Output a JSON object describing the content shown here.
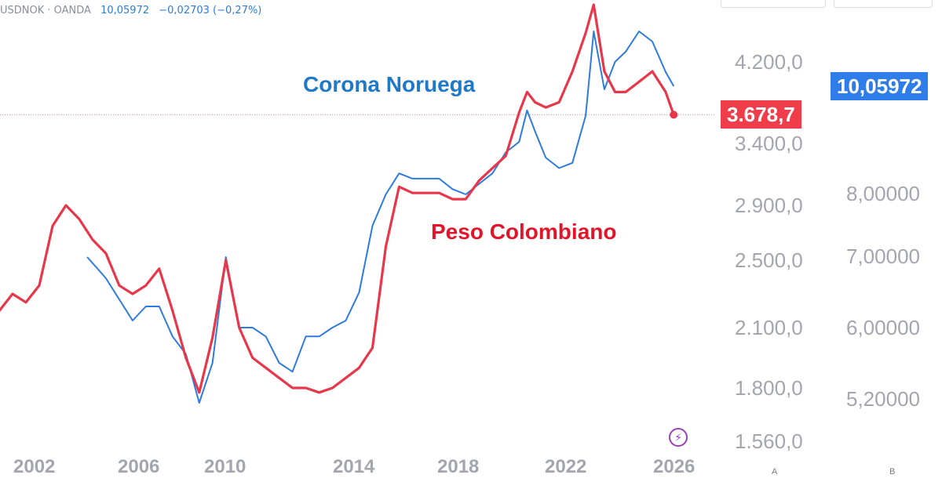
{
  "legend": {
    "symbol": "USDNOK · OANDA",
    "last": "10,05972",
    "change": "−0,02703 (−0,27%)"
  },
  "labels": {
    "blue_series": "Corona Noruega",
    "red_series": "Peso Colombiano"
  },
  "price_tags": {
    "blue": "10,05972",
    "red": "3.678,7"
  },
  "pane_letters": [
    "A",
    "B"
  ],
  "colors": {
    "blue": "#2d7be0",
    "red": "#e8374a",
    "tick_text": "#a3a6ae",
    "blue_tag": "#2f7de8",
    "red_tag": "#ef3d4a"
  },
  "icons": [
    "flash-icon"
  ],
  "chart_data": {
    "type": "line",
    "x_ticks": [
      "2002",
      "2006",
      "2010",
      "2014",
      "2018",
      "2022",
      "2026"
    ],
    "y_left_ticks": [
      "4.200,0",
      "3.400,0",
      "2.900,0",
      "2.500,0",
      "2.100,0",
      "1.800,0",
      "1.560,0"
    ],
    "y_right_ticks": [
      "8,00000",
      "7,00000",
      "6,00000",
      "5,20000"
    ],
    "series": [
      {
        "name": "Peso Colombiano",
        "axis": "left",
        "x": [
          2000.0,
          2000.5,
          2001.0,
          2001.5,
          2002.0,
          2002.5,
          2003.0,
          2003.5,
          2004.0,
          2004.5,
          2005.0,
          2005.5,
          2006.0,
          2006.5,
          2007.0,
          2007.5,
          2008.0,
          2008.5,
          2009.0,
          2009.5,
          2010.0,
          2010.5,
          2011.0,
          2011.5,
          2012.0,
          2012.5,
          2013.0,
          2013.5,
          2014.0,
          2014.5,
          2015.0,
          2015.5,
          2016.0,
          2016.5,
          2017.0,
          2017.5,
          2018.0,
          2018.5,
          2019.0,
          2019.5,
          2020.0,
          2020.3,
          2020.6,
          2021.0,
          2021.5,
          2022.0,
          2022.5,
          2022.8,
          2023.2,
          2023.6,
          2024.0,
          2024.5,
          2025.0,
          2025.5,
          2025.8
        ],
        "y": [
          2150,
          2200,
          2300,
          2250,
          2350,
          2750,
          2900,
          2800,
          2650,
          2550,
          2350,
          2300,
          2350,
          2450,
          2200,
          1950,
          1780,
          2050,
          2500,
          2100,
          1950,
          1900,
          1850,
          1800,
          1800,
          1780,
          1800,
          1850,
          1900,
          2000,
          2600,
          3050,
          3000,
          3000,
          3000,
          2950,
          2950,
          3100,
          3200,
          3300,
          3700,
          3900,
          3800,
          3750,
          3800,
          4100,
          4400,
          4600,
          4100,
          3900,
          3900,
          4000,
          4100,
          3900,
          3679
        ]
      },
      {
        "name": "Corona Noruega",
        "axis": "right",
        "x": [
          2003.8,
          2004.5,
          2005.0,
          2005.5,
          2006.0,
          2006.5,
          2007.0,
          2007.5,
          2008.0,
          2008.5,
          2009.0,
          2009.5,
          2010.0,
          2010.5,
          2011.0,
          2011.5,
          2012.0,
          2012.5,
          2013.0,
          2013.5,
          2014.0,
          2014.5,
          2015.0,
          2015.5,
          2016.0,
          2016.5,
          2017.0,
          2017.5,
          2018.0,
          2018.5,
          2019.0,
          2019.5,
          2020.0,
          2020.3,
          2020.6,
          2021.0,
          2021.5,
          2022.0,
          2022.5,
          2022.8,
          2023.2,
          2023.6,
          2024.0,
          2024.5,
          2025.0,
          2025.5,
          2025.8
        ],
        "y": [
          7.0,
          6.7,
          6.4,
          6.1,
          6.3,
          6.3,
          5.9,
          5.7,
          5.1,
          5.6,
          7.0,
          6.0,
          6.0,
          5.9,
          5.6,
          5.5,
          5.9,
          5.9,
          6.0,
          6.1,
          6.5,
          7.5,
          8.0,
          8.4,
          8.3,
          8.3,
          8.3,
          8.1,
          8.0,
          8.2,
          8.4,
          8.8,
          9.0,
          9.6,
          9.2,
          8.7,
          8.5,
          8.6,
          9.5,
          10.6,
          10.0,
          10.3,
          10.4,
          10.6,
          10.5,
          10.2,
          10.06
        ]
      }
    ]
  }
}
